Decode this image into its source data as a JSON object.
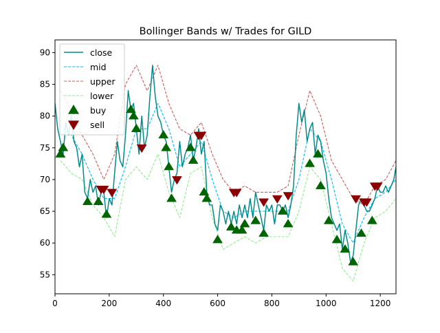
{
  "chart_data": {
    "type": "line",
    "title": "Bollinger Bands w/ Trades for GILD",
    "xlabel": "",
    "ylabel": "",
    "xlim": [
      0,
      1258
    ],
    "ylim": [
      52,
      92
    ],
    "x_ticks": [
      0,
      200,
      400,
      600,
      800,
      1000,
      1200
    ],
    "y_ticks": [
      55,
      60,
      65,
      70,
      75,
      80,
      85,
      90
    ],
    "grid": false,
    "legend_position": "upper-left",
    "series": [
      {
        "name": "close",
        "color": "#008b8b",
        "style": "solid",
        "x": [
          0,
          10,
          20,
          30,
          40,
          50,
          60,
          70,
          80,
          90,
          100,
          110,
          120,
          130,
          140,
          150,
          160,
          170,
          180,
          190,
          200,
          210,
          220,
          230,
          240,
          250,
          260,
          270,
          280,
          290,
          300,
          310,
          320,
          330,
          340,
          350,
          360,
          370,
          380,
          390,
          400,
          410,
          420,
          430,
          440,
          450,
          460,
          470,
          480,
          490,
          500,
          510,
          520,
          530,
          540,
          550,
          560,
          570,
          580,
          590,
          600,
          610,
          620,
          630,
          640,
          650,
          660,
          670,
          680,
          690,
          700,
          710,
          720,
          730,
          740,
          750,
          760,
          770,
          780,
          790,
          800,
          810,
          820,
          830,
          840,
          850,
          860,
          870,
          880,
          890,
          900,
          910,
          920,
          930,
          940,
          950,
          960,
          970,
          980,
          990,
          1000,
          1010,
          1020,
          1030,
          1040,
          1050,
          1060,
          1070,
          1080,
          1090,
          1100,
          1110,
          1120,
          1130,
          1140,
          1150,
          1160,
          1170,
          1180,
          1190,
          1200,
          1210,
          1220,
          1230,
          1240,
          1250,
          1258
        ],
        "values": [
          82,
          78,
          76,
          74,
          79,
          77,
          80,
          76,
          75,
          72,
          74,
          68,
          67,
          70,
          68,
          69,
          66,
          68,
          68,
          64,
          67,
          66,
          71,
          76,
          73,
          72,
          77,
          84,
          81,
          82,
          78,
          74,
          80,
          75,
          77,
          83,
          88,
          83,
          80,
          79,
          77,
          76,
          72,
          68,
          70,
          71,
          76,
          72,
          74,
          75,
          77,
          73,
          75,
          78,
          74,
          76,
          68,
          66,
          66,
          63,
          62,
          66,
          65,
          63,
          65,
          63,
          65,
          63,
          66,
          64,
          66,
          64,
          67,
          64,
          68,
          66,
          64,
          62,
          66,
          65,
          66,
          63,
          66,
          66,
          65,
          66,
          64,
          66,
          69,
          77,
          82,
          79,
          81,
          76,
          78,
          79,
          74,
          77,
          76,
          73,
          71,
          67,
          64,
          63,
          62,
          63,
          59,
          62,
          60,
          57,
          58,
          62,
          66,
          67,
          66,
          65,
          65,
          66,
          67,
          69,
          68,
          68,
          69,
          68,
          69,
          70,
          72
        ]
      },
      {
        "name": "mid",
        "color": "#00bfff",
        "style": "dashed",
        "x": [
          20,
          60,
          100,
          140,
          180,
          220,
          260,
          300,
          340,
          380,
          420,
          460,
          500,
          540,
          580,
          620,
          660,
          700,
          740,
          780,
          820,
          860,
          900,
          940,
          980,
          1020,
          1060,
          1100,
          1140,
          1180,
          1220,
          1258
        ],
        "values": [
          78.5,
          77,
          74,
          70,
          67,
          67,
          72,
          78,
          78,
          82,
          78,
          72,
          74,
          76,
          70,
          65,
          64,
          65,
          65,
          65,
          65,
          65,
          70,
          78,
          76,
          70,
          63,
          60,
          64,
          67,
          68,
          70
        ]
      },
      {
        "name": "upper",
        "color": "#cd5c5c",
        "style": "dashed",
        "x": [
          20,
          60,
          100,
          140,
          180,
          220,
          260,
          300,
          340,
          380,
          420,
          460,
          500,
          540,
          580,
          620,
          660,
          700,
          740,
          780,
          820,
          860,
          900,
          940,
          980,
          1020,
          1060,
          1100,
          1140,
          1180,
          1220,
          1258
        ],
        "values": [
          84,
          81,
          77,
          74,
          70,
          74,
          85,
          88,
          84,
          88,
          82,
          78,
          77,
          79,
          74,
          70,
          68,
          69,
          68,
          68,
          68,
          69,
          77,
          84,
          80,
          73,
          70,
          67,
          66,
          69,
          70,
          73
        ]
      },
      {
        "name": "lower",
        "color": "#90ee90",
        "style": "dashed",
        "x": [
          20,
          60,
          100,
          140,
          180,
          220,
          260,
          300,
          340,
          380,
          420,
          460,
          500,
          540,
          580,
          620,
          660,
          700,
          740,
          780,
          820,
          860,
          900,
          940,
          980,
          1020,
          1060,
          1100,
          1140,
          1180,
          1220,
          1258
        ],
        "values": [
          73,
          71,
          70,
          66,
          64,
          61,
          70,
          72,
          70,
          74,
          68,
          64,
          71,
          72,
          64,
          59,
          60,
          61,
          60,
          61,
          61,
          61,
          65,
          72,
          70,
          63,
          56,
          54,
          60,
          64,
          65,
          67
        ]
      }
    ],
    "markers": [
      {
        "name": "buy",
        "color": "#006400",
        "symbol": "triangle-up",
        "points": [
          [
            20,
            74
          ],
          [
            30,
            75
          ],
          [
            120,
            66.5
          ],
          [
            160,
            66.5
          ],
          [
            190,
            64.5
          ],
          [
            280,
            81
          ],
          [
            290,
            80
          ],
          [
            300,
            78
          ],
          [
            400,
            77
          ],
          [
            410,
            75
          ],
          [
            420,
            72
          ],
          [
            430,
            67
          ],
          [
            500,
            75
          ],
          [
            510,
            73
          ],
          [
            550,
            68
          ],
          [
            560,
            67
          ],
          [
            600,
            60.5
          ],
          [
            650,
            62.5
          ],
          [
            670,
            62
          ],
          [
            690,
            62
          ],
          [
            700,
            63
          ],
          [
            740,
            63.5
          ],
          [
            770,
            61.5
          ],
          [
            840,
            65
          ],
          [
            860,
            63
          ],
          [
            940,
            72.5
          ],
          [
            970,
            74
          ],
          [
            980,
            69
          ],
          [
            1010,
            63.5
          ],
          [
            1040,
            60.5
          ],
          [
            1070,
            59
          ],
          [
            1100,
            57
          ],
          [
            1130,
            61.5
          ],
          [
            1170,
            63.5
          ]
        ]
      },
      {
        "name": "sell",
        "color": "#8b0000",
        "symbol": "triangle-down",
        "points": [
          [
            170,
            68.5
          ],
          [
            180,
            68.5
          ],
          [
            210,
            68
          ],
          [
            320,
            75
          ],
          [
            450,
            70
          ],
          [
            530,
            77
          ],
          [
            540,
            77
          ],
          [
            660,
            68
          ],
          [
            670,
            68
          ],
          [
            770,
            66.5
          ],
          [
            820,
            67
          ],
          [
            860,
            67.5
          ],
          [
            1110,
            67
          ],
          [
            1140,
            66.5
          ],
          [
            1150,
            66.5
          ],
          [
            1180,
            69
          ],
          [
            1190,
            69
          ]
        ]
      }
    ]
  }
}
